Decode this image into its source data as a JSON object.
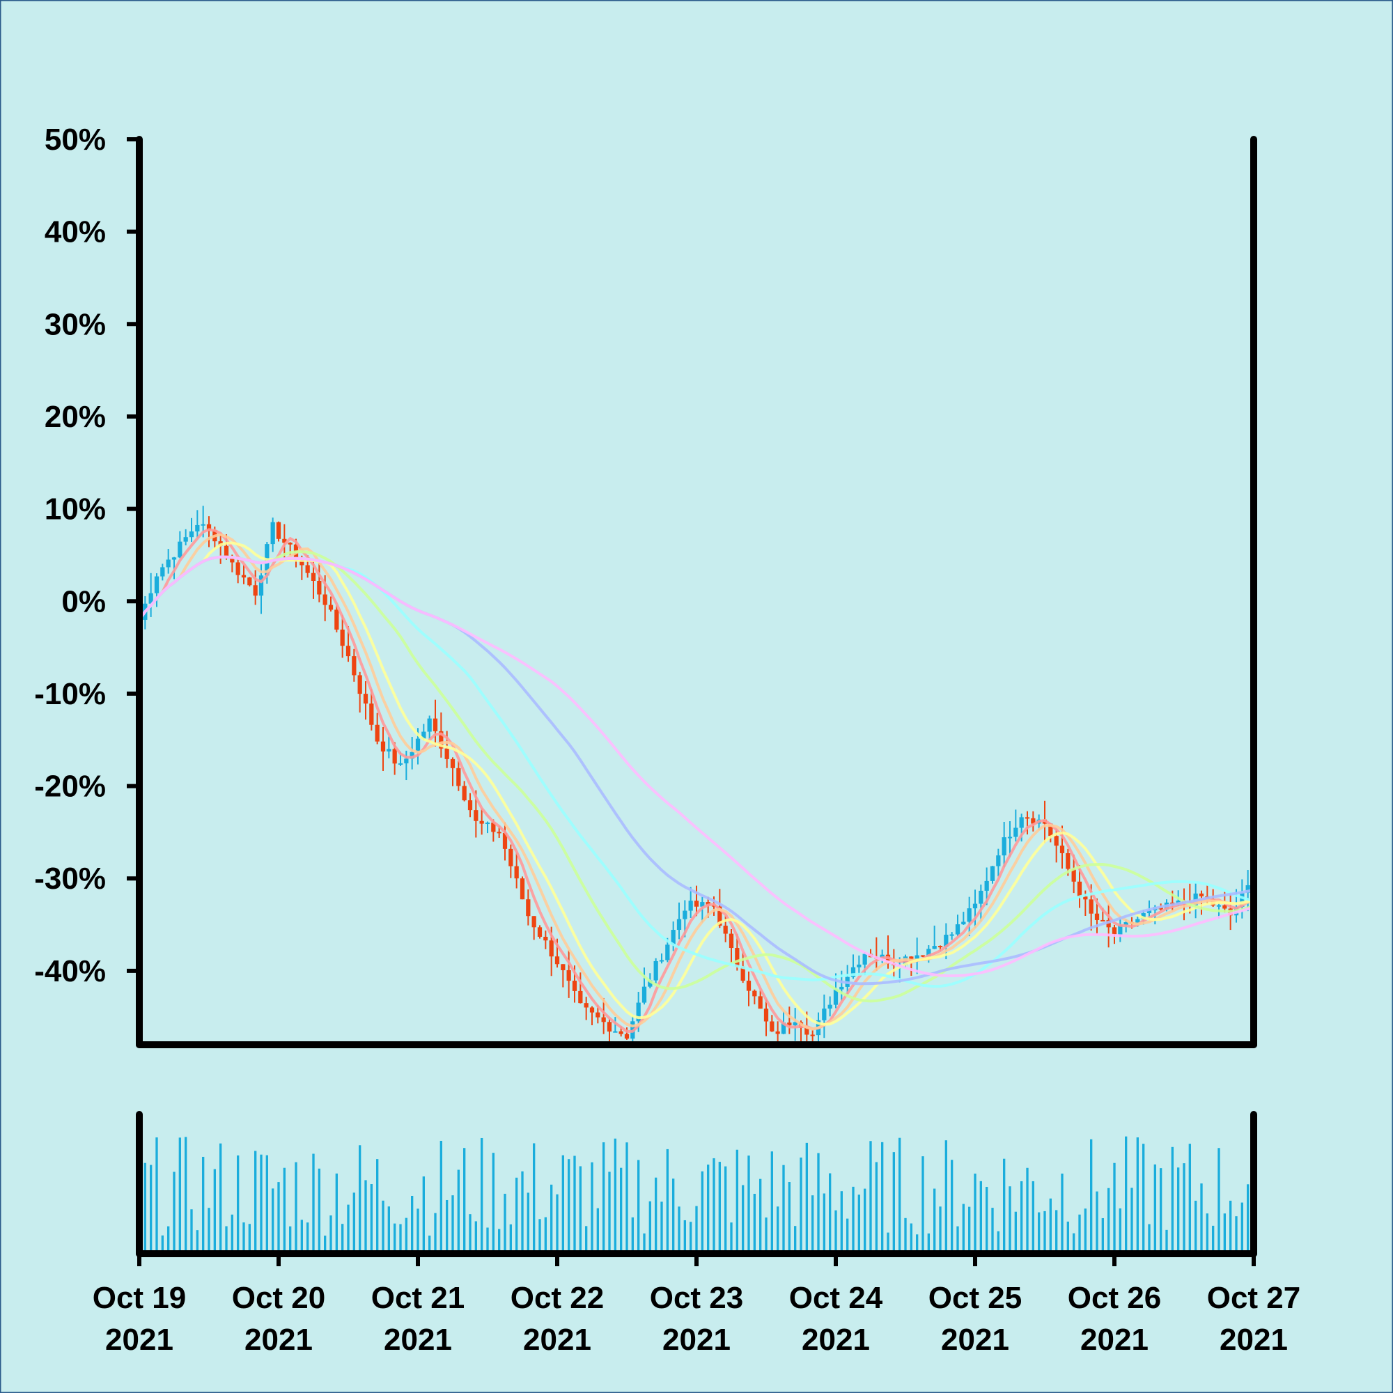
{
  "theme": {
    "background": "#c8edee",
    "frame": "#2a5a8a",
    "axis": "#000000",
    "candle_up": "#1aaddc",
    "candle_down": "#ee4411",
    "volume": "#1aaddc"
  },
  "chart_data": {
    "type": "candlestick",
    "title": "",
    "xlabel": "",
    "ylabel": "",
    "y_unit": "percent",
    "ylim": [
      -48,
      50
    ],
    "y_ticks": [
      {
        "value": 50,
        "label": "50%"
      },
      {
        "value": 40,
        "label": "40%"
      },
      {
        "value": 30,
        "label": "30%"
      },
      {
        "value": 20,
        "label": "20%"
      },
      {
        "value": 10,
        "label": "10%"
      },
      {
        "value": 0,
        "label": "0%"
      },
      {
        "value": -10,
        "label": "-10%"
      },
      {
        "value": -20,
        "label": "-20%"
      },
      {
        "value": -30,
        "label": "-30%"
      },
      {
        "value": -40,
        "label": "-40%"
      }
    ],
    "x_start": "2021-10-19",
    "x_end": "2021-10-27",
    "x_ticks": [
      {
        "date": "2021-10-19",
        "line1": "Oct 19",
        "line2": "2021"
      },
      {
        "date": "2021-10-20",
        "line1": "Oct 20",
        "line2": "2021"
      },
      {
        "date": "2021-10-21",
        "line1": "Oct 21",
        "line2": "2021"
      },
      {
        "date": "2021-10-22",
        "line1": "Oct 22",
        "line2": "2021"
      },
      {
        "date": "2021-10-23",
        "line1": "Oct 23",
        "line2": "2021"
      },
      {
        "date": "2021-10-24",
        "line1": "Oct 24",
        "line2": "2021"
      },
      {
        "date": "2021-10-25",
        "line1": "Oct 25",
        "line2": "2021"
      },
      {
        "date": "2021-10-26",
        "line1": "Oct 26",
        "line2": "2021"
      },
      {
        "date": "2021-10-27",
        "line1": "Oct 27",
        "line2": "2021"
      }
    ],
    "price_path": [
      [
        "2021-10-19 00:00",
        -2
      ],
      [
        "2021-10-19 03:00",
        3
      ],
      [
        "2021-10-19 07:00",
        6
      ],
      [
        "2021-10-19 10:00",
        8.5
      ],
      [
        "2021-10-19 13:00",
        7
      ],
      [
        "2021-10-19 16:00",
        4
      ],
      [
        "2021-10-19 20:00",
        1
      ],
      [
        "2021-10-19 23:00",
        8
      ],
      [
        "2021-10-20 04:00",
        4
      ],
      [
        "2021-10-20 08:00",
        0
      ],
      [
        "2021-10-20 12:00",
        -6
      ],
      [
        "2021-10-20 17:00",
        -15
      ],
      [
        "2021-10-20 21:00",
        -18
      ],
      [
        "2021-10-21 02:00",
        -13
      ],
      [
        "2021-10-21 06:00",
        -18
      ],
      [
        "2021-10-21 10:00",
        -24
      ],
      [
        "2021-10-21 14:00",
        -25
      ],
      [
        "2021-10-21 19:00",
        -34
      ],
      [
        "2021-10-22 00:00",
        -39
      ],
      [
        "2021-10-22 04:00",
        -44
      ],
      [
        "2021-10-22 09:00",
        -46
      ],
      [
        "2021-10-22 12:00",
        -47
      ],
      [
        "2021-10-22 15:00",
        -42
      ],
      [
        "2021-10-22 19:00",
        -37
      ],
      [
        "2021-10-22 22:00",
        -33
      ],
      [
        "2021-10-23 03:00",
        -33
      ],
      [
        "2021-10-23 06:00",
        -38
      ],
      [
        "2021-10-23 10:00",
        -43
      ],
      [
        "2021-10-23 13:00",
        -47
      ],
      [
        "2021-10-23 17:00",
        -45
      ],
      [
        "2021-10-23 20:00",
        -47
      ],
      [
        "2021-10-24 00:00",
        -42
      ],
      [
        "2021-10-24 05:00",
        -38
      ],
      [
        "2021-10-24 10:00",
        -39
      ],
      [
        "2021-10-24 15:00",
        -38
      ],
      [
        "2021-10-24 20:00",
        -36
      ],
      [
        "2021-10-25 00:00",
        -33
      ],
      [
        "2021-10-25 04:00",
        -27
      ],
      [
        "2021-10-25 08:00",
        -23
      ],
      [
        "2021-10-25 12:00",
        -24
      ],
      [
        "2021-10-25 16:00",
        -29
      ],
      [
        "2021-10-25 20:00",
        -34
      ],
      [
        "2021-10-26 00:00",
        -36
      ],
      [
        "2021-10-26 05:00",
        -34
      ],
      [
        "2021-10-26 10:00",
        -33
      ],
      [
        "2021-10-26 15:00",
        -32
      ],
      [
        "2021-10-26 20:00",
        -34
      ],
      [
        "2021-10-27 00:00",
        -30
      ]
    ],
    "moving_averages": [
      {
        "color": "#ff9999",
        "period": 5
      },
      {
        "color": "#ffcc99",
        "period": 8
      },
      {
        "color": "#ffff99",
        "period": 12
      },
      {
        "color": "#ccff99",
        "period": 24
      },
      {
        "color": "#99ffff",
        "period": 36
      },
      {
        "color": "#aabbff",
        "period": 54
      },
      {
        "color": "#ffbbff",
        "period": 72
      }
    ],
    "volume": {
      "relative_scale": true
    }
  }
}
